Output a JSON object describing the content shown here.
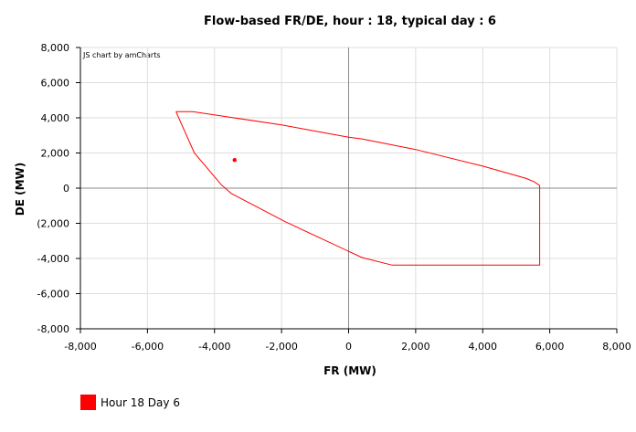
{
  "chart_data": {
    "type": "scatter",
    "title": "Flow-based FR/DE, hour : 18, typical day : 6",
    "xlabel": "FR (MW)",
    "ylabel": "DE (MW)",
    "xlim": [
      -8000,
      8000
    ],
    "ylim": [
      -8000,
      8000
    ],
    "x_ticks": [
      "-8,000",
      "-6,000",
      "-4,000",
      "-2,000",
      "0",
      "2,000",
      "4,000",
      "6,000",
      "8,000"
    ],
    "y_ticks": [
      "8,000",
      "6,000",
      "4,000",
      "2,000",
      "0",
      "(2,000",
      "-4,000",
      "-6,000",
      "-8,000"
    ],
    "grid": true,
    "legend_position": "bottom-left",
    "credit": "JS chart by amCharts",
    "series": [
      {
        "name": "Hour 18 Day 6",
        "color": "#ff0000",
        "polygon": [
          [
            -5150,
            4350
          ],
          [
            -4650,
            4350
          ],
          [
            -2000,
            3600
          ],
          [
            0,
            2900
          ],
          [
            400,
            2800
          ],
          [
            2000,
            2200
          ],
          [
            4000,
            1250
          ],
          [
            5300,
            550
          ],
          [
            5550,
            350
          ],
          [
            5700,
            150
          ],
          [
            5700,
            -4380
          ],
          [
            1300,
            -4380
          ],
          [
            400,
            -3950
          ],
          [
            -1900,
            -1900
          ],
          [
            -3500,
            -300
          ],
          [
            -3800,
            200
          ],
          [
            -4600,
            2000
          ],
          [
            -5150,
            4350
          ]
        ],
        "points": [
          [
            -3400,
            1600
          ]
        ]
      }
    ]
  }
}
